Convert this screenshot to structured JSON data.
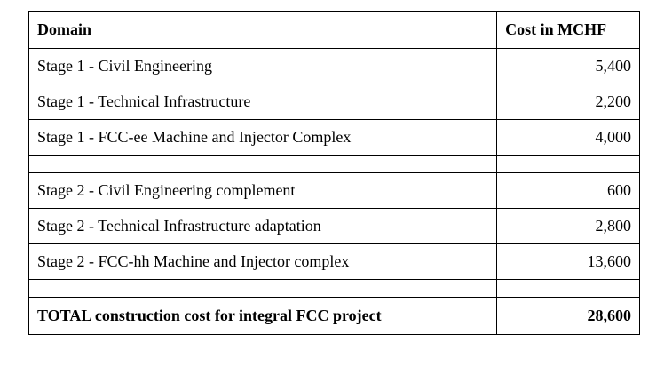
{
  "table": {
    "header": [
      "Domain",
      "Cost in MCHF"
    ],
    "rows": [
      [
        "Stage 1 - Civil Engineering",
        "5,400"
      ],
      [
        "Stage 1 - Technical Infrastructure",
        "2,200"
      ],
      [
        "Stage 1 - FCC-ee Machine and Injector Complex",
        "4,000"
      ],
      [
        "Stage 2 - Civil Engineering complement",
        "600"
      ],
      [
        "Stage 2 - Technical Infrastructure adaptation",
        "2,800"
      ],
      [
        "Stage 2 - FCC-hh Machine and Injector complex",
        "13,600"
      ]
    ],
    "total": [
      "TOTAL construction cost for integral FCC project",
      "28,600"
    ]
  }
}
